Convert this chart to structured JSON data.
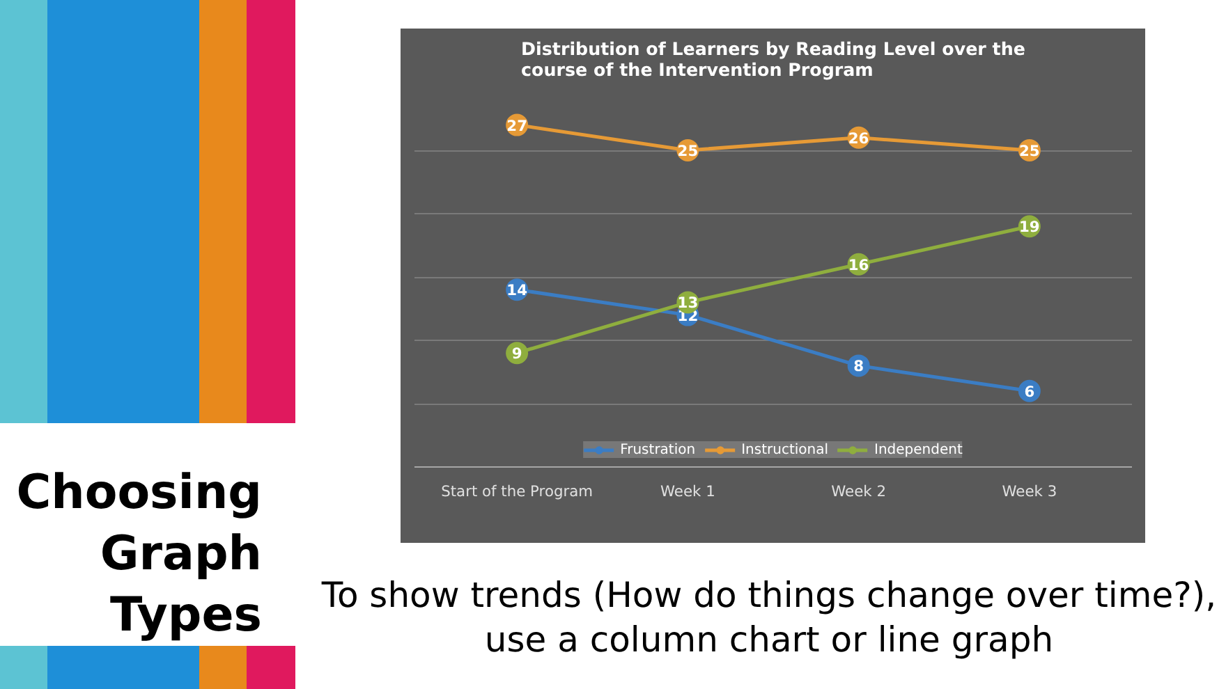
{
  "chart_data": {
    "type": "line",
    "title": "Distribution of Learners by Reading Level over the course of the Intervention Program",
    "categories": [
      "Start of the Program",
      "Week 1",
      "Week 2",
      "Week 3"
    ],
    "series": [
      {
        "name": "Frustration",
        "color": "#3b7dc4",
        "values": [
          14,
          12,
          8,
          6
        ]
      },
      {
        "name": "Instructional",
        "color": "#e69a36",
        "values": [
          27,
          25,
          26,
          25
        ]
      },
      {
        "name": "Independent",
        "color": "#8fae3e",
        "values": [
          9,
          13,
          16,
          19
        ]
      }
    ],
    "ylim": [
      0,
      30
    ],
    "yticks": [
      {
        "value": 0,
        "label": null
      },
      {
        "value": 5,
        "label": null
      },
      {
        "value": 10,
        "label": null
      },
      {
        "value": 15,
        "label": null
      },
      {
        "value": 20,
        "label": null
      },
      {
        "value": 25,
        "label": null
      },
      {
        "value": 30,
        "label": null
      }
    ],
    "tick_labels": "x",
    "grid": "y",
    "legend": "bottom",
    "marker": "circle",
    "line_style": "solid",
    "data_labels": true,
    "annotations": [
      "Choosing Graph Types",
      "To show trends (How do things change over time?), use a column chart or line graph"
    ]
  }
}
